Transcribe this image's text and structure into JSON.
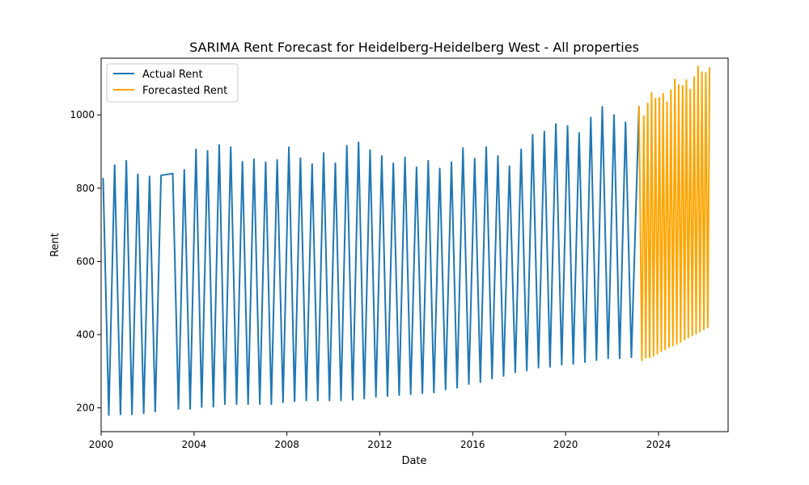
{
  "chart_data": {
    "type": "line",
    "title": "SARIMA Rent Forecast for Heidelberg-Heidelberg West - All properties",
    "xlabel": "Date",
    "ylabel": "Rent",
    "xlim": [
      "2000-01-01",
      "2026-12-31"
    ],
    "ylim": [
      135,
      1155
    ],
    "x_ticks": [
      "2000",
      "2004",
      "2008",
      "2012",
      "2016",
      "2020",
      "2024"
    ],
    "y_ticks": [
      200,
      400,
      600,
      800,
      1000
    ],
    "grid": false,
    "legend": "upper-left",
    "series": [
      {
        "name": "Actual Rent",
        "color": "#1f77b4",
        "points": [
          [
            "2000-02-01",
            828
          ],
          [
            "2000-05-01",
            180
          ],
          [
            "2000-08-01",
            863
          ],
          [
            "2000-11-01",
            182
          ],
          [
            "2001-02-01",
            875
          ],
          [
            "2001-05-01",
            182
          ],
          [
            "2001-08-01",
            838
          ],
          [
            "2001-11-01",
            185
          ],
          [
            "2002-02-01",
            832
          ],
          [
            "2002-05-01",
            190
          ],
          [
            "2002-08-01",
            835
          ],
          [
            "2003-02-01",
            840
          ],
          [
            "2003-05-01",
            197
          ],
          [
            "2003-08-01",
            850
          ],
          [
            "2003-11-01",
            197
          ],
          [
            "2004-02-01",
            906
          ],
          [
            "2004-05-01",
            202
          ],
          [
            "2004-08-01",
            902
          ],
          [
            "2004-11-01",
            203
          ],
          [
            "2005-02-01",
            918
          ],
          [
            "2005-05-01",
            210
          ],
          [
            "2005-08-01",
            912
          ],
          [
            "2005-11-01",
            210
          ],
          [
            "2006-02-01",
            872
          ],
          [
            "2006-05-01",
            210
          ],
          [
            "2006-08-01",
            879
          ],
          [
            "2006-11-01",
            210
          ],
          [
            "2007-02-01",
            871
          ],
          [
            "2007-05-01",
            210
          ],
          [
            "2007-08-01",
            877
          ],
          [
            "2007-11-01",
            215
          ],
          [
            "2008-02-01",
            912
          ],
          [
            "2008-05-01",
            218
          ],
          [
            "2008-08-01",
            882
          ],
          [
            "2008-11-01",
            220
          ],
          [
            "2009-02-01",
            866
          ],
          [
            "2009-05-01",
            220
          ],
          [
            "2009-08-01",
            896
          ],
          [
            "2009-11-01",
            220
          ],
          [
            "2010-02-01",
            868
          ],
          [
            "2010-05-01",
            220
          ],
          [
            "2010-08-01",
            916
          ],
          [
            "2010-11-01",
            222
          ],
          [
            "2011-02-01",
            925
          ],
          [
            "2011-05-01",
            225
          ],
          [
            "2011-08-01",
            904
          ],
          [
            "2011-11-01",
            230
          ],
          [
            "2012-02-01",
            888
          ],
          [
            "2012-05-01",
            232
          ],
          [
            "2012-08-01",
            868
          ],
          [
            "2012-11-01",
            235
          ],
          [
            "2013-02-01",
            884
          ],
          [
            "2013-05-01",
            237
          ],
          [
            "2013-08-01",
            857
          ],
          [
            "2013-11-01",
            240
          ],
          [
            "2014-02-01",
            875
          ],
          [
            "2014-05-01",
            242
          ],
          [
            "2014-08-01",
            854
          ],
          [
            "2014-11-01",
            250
          ],
          [
            "2015-02-01",
            871
          ],
          [
            "2015-05-01",
            255
          ],
          [
            "2015-08-01",
            910
          ],
          [
            "2015-11-01",
            265
          ],
          [
            "2016-02-01",
            881
          ],
          [
            "2016-05-01",
            270
          ],
          [
            "2016-08-01",
            912
          ],
          [
            "2016-11-01",
            280
          ],
          [
            "2017-02-01",
            888
          ],
          [
            "2017-05-01",
            287
          ],
          [
            "2017-08-01",
            860
          ],
          [
            "2017-11-01",
            297
          ],
          [
            "2018-02-01",
            906
          ],
          [
            "2018-05-01",
            302
          ],
          [
            "2018-08-01",
            946
          ],
          [
            "2018-11-01",
            310
          ],
          [
            "2019-02-01",
            955
          ],
          [
            "2019-05-01",
            312
          ],
          [
            "2019-08-01",
            975
          ],
          [
            "2019-11-01",
            318
          ],
          [
            "2020-02-01",
            970
          ],
          [
            "2020-05-01",
            320
          ],
          [
            "2020-08-01",
            951
          ],
          [
            "2020-11-01",
            325
          ],
          [
            "2021-02-01",
            993
          ],
          [
            "2021-05-01",
            330
          ],
          [
            "2021-08-01",
            1022
          ],
          [
            "2021-11-01",
            335
          ],
          [
            "2022-02-01",
            1000
          ],
          [
            "2022-05-01",
            335
          ],
          [
            "2022-08-01",
            980
          ],
          [
            "2022-11-01",
            338
          ],
          [
            "2023-03-01",
            1024
          ]
        ]
      },
      {
        "name": "Forecasted Rent",
        "color": "#ffa500",
        "points": [
          [
            "2023-03-01",
            1024
          ],
          [
            "2023-04-15",
            330
          ],
          [
            "2023-05-15",
            997
          ],
          [
            "2023-06-15",
            337
          ],
          [
            "2023-07-15",
            1032
          ],
          [
            "2023-08-15",
            338
          ],
          [
            "2023-09-15",
            1060
          ],
          [
            "2023-10-15",
            342
          ],
          [
            "2023-11-15",
            1045
          ],
          [
            "2023-12-15",
            348
          ],
          [
            "2024-01-15",
            1047
          ],
          [
            "2024-02-15",
            355
          ],
          [
            "2024-03-15",
            1058
          ],
          [
            "2024-04-15",
            360
          ],
          [
            "2024-05-15",
            1035
          ],
          [
            "2024-06-15",
            366
          ],
          [
            "2024-07-15",
            1068
          ],
          [
            "2024-08-15",
            370
          ],
          [
            "2024-09-15",
            1097
          ],
          [
            "2024-10-15",
            374
          ],
          [
            "2024-11-15",
            1082
          ],
          [
            "2024-12-15",
            380
          ],
          [
            "2025-01-15",
            1080
          ],
          [
            "2025-02-15",
            386
          ],
          [
            "2025-03-15",
            1095
          ],
          [
            "2025-04-15",
            392
          ],
          [
            "2025-05-15",
            1070
          ],
          [
            "2025-06-15",
            398
          ],
          [
            "2025-07-15",
            1103
          ],
          [
            "2025-08-15",
            402
          ],
          [
            "2025-09-15",
            1132
          ],
          [
            "2025-10-15",
            408
          ],
          [
            "2025-11-15",
            1117
          ],
          [
            "2025-12-15",
            414
          ],
          [
            "2026-01-15",
            1115
          ],
          [
            "2026-02-15",
            420
          ],
          [
            "2026-03-15",
            1130
          ]
        ]
      }
    ]
  }
}
